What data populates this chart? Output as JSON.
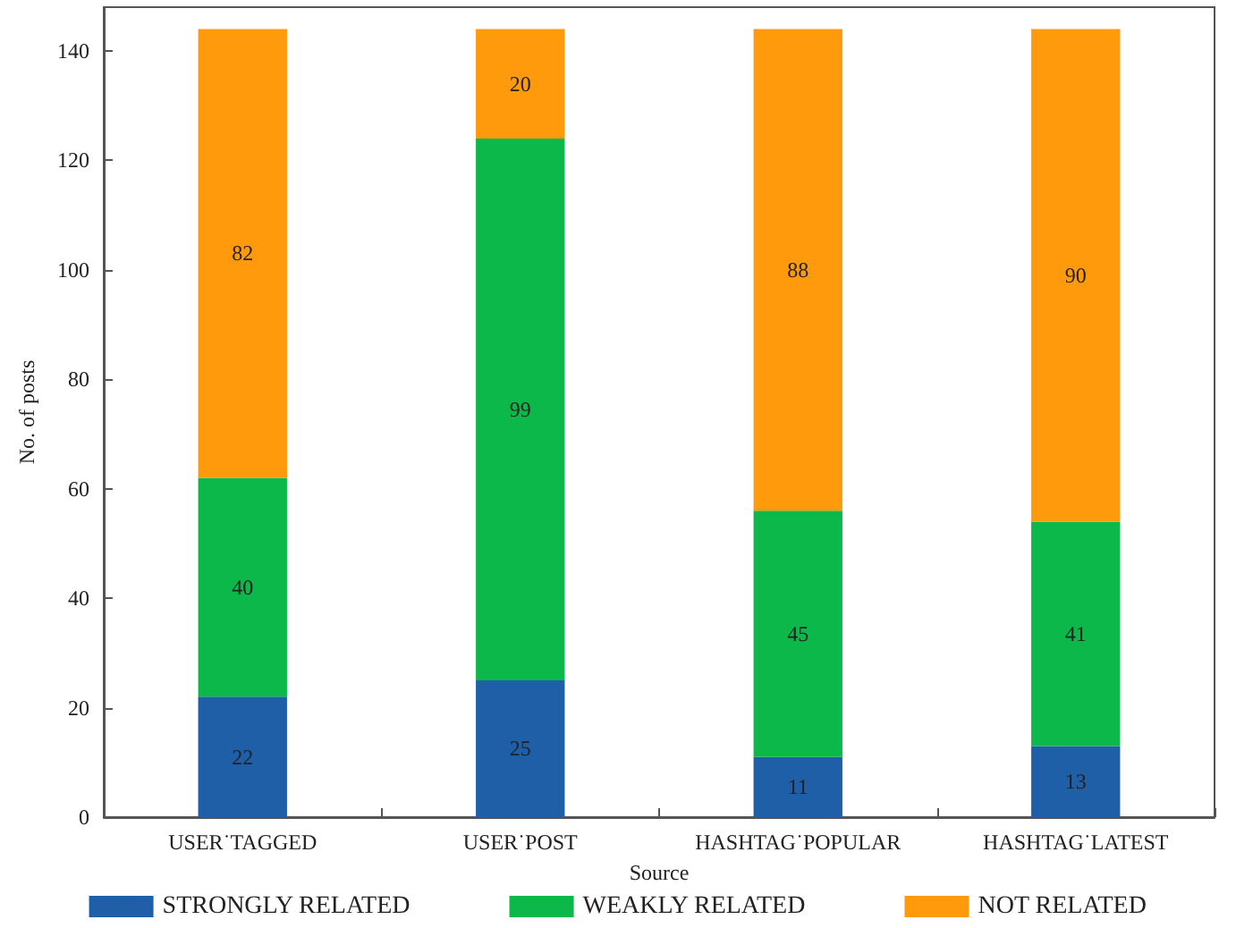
{
  "chart_data": {
    "type": "bar",
    "stacked": true,
    "xlabel": "Source",
    "ylabel": "No. of posts",
    "categories": [
      "USER˙TAGGED",
      "USER˙POST",
      "HASHTAG˙POPULAR",
      "HASHTAG˙LATEST"
    ],
    "series": [
      {
        "name": "STRONGLY RELATED",
        "color": "#1f5fa8",
        "values": [
          22,
          25,
          11,
          13
        ]
      },
      {
        "name": "WEAKLY RELATED",
        "color": "#0db84a",
        "values": [
          40,
          99,
          45,
          41
        ]
      },
      {
        "name": "NOT RELATED",
        "color": "#ff9a0c",
        "values": [
          82,
          20,
          88,
          90
        ]
      }
    ],
    "ylim": [
      0,
      148
    ],
    "yticks": [
      0,
      20,
      40,
      60,
      80,
      100,
      120,
      140
    ],
    "data_labels": true,
    "grid": false,
    "legend": "bottom"
  }
}
